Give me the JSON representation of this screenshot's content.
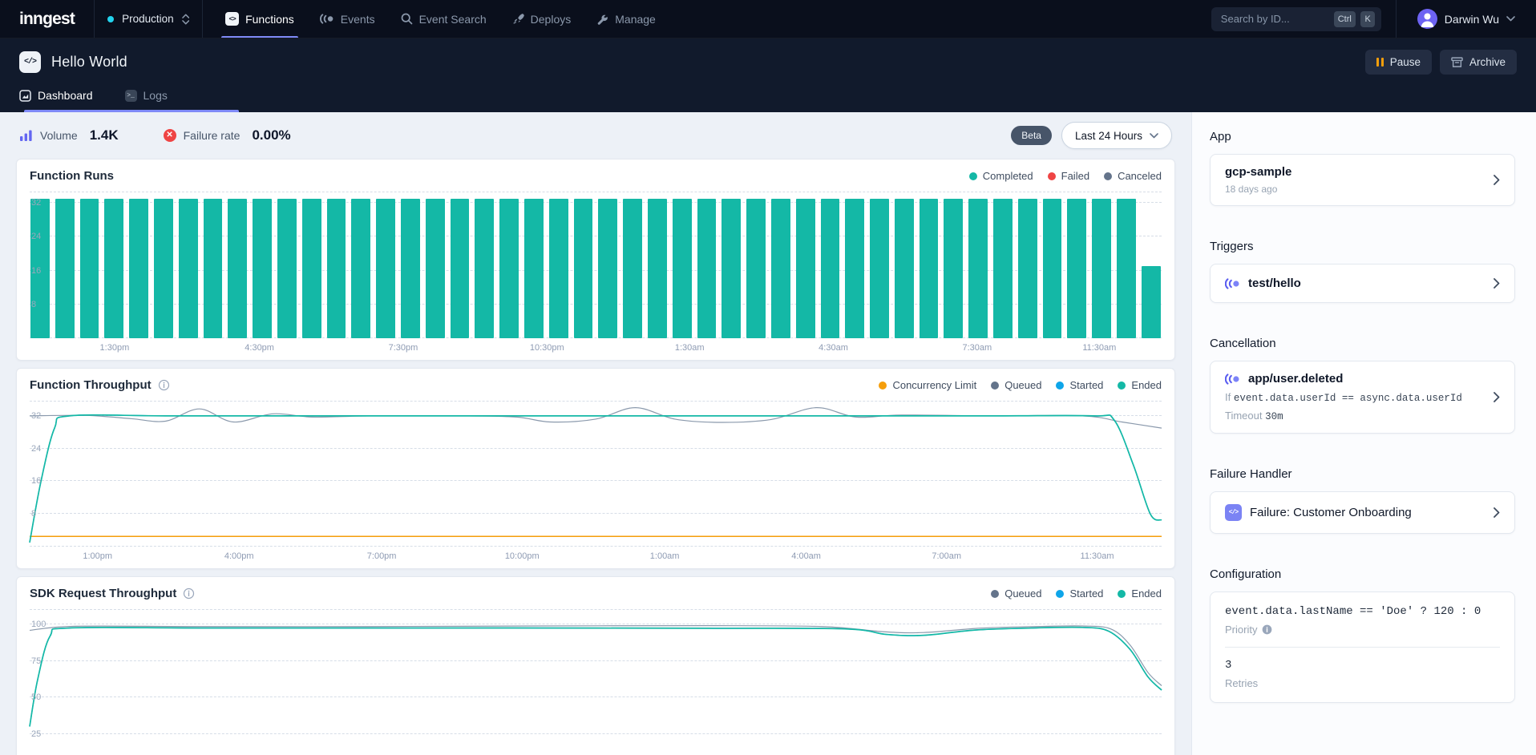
{
  "topnav": {
    "logo": "inngest",
    "env": "Production",
    "tabs": [
      {
        "label": "Functions",
        "active": true
      },
      {
        "label": "Events"
      },
      {
        "label": "Event Search"
      },
      {
        "label": "Deploys"
      },
      {
        "label": "Manage"
      }
    ],
    "search_placeholder": "Search by ID...",
    "kbd": [
      "Ctrl",
      "K"
    ],
    "user": "Darwin Wu"
  },
  "header": {
    "title": "Hello World",
    "tabs": [
      {
        "label": "Dashboard",
        "active": true
      },
      {
        "label": "Logs"
      }
    ],
    "pause_label": "Pause",
    "archive_label": "Archive"
  },
  "stats": {
    "volume_label": "Volume",
    "volume_value": "1.4K",
    "failure_label": "Failure rate",
    "failure_value": "0.00%",
    "beta_label": "Beta",
    "range_label": "Last 24 Hours"
  },
  "colors": {
    "accent_indigo": "#7f8af7",
    "completed_teal": "#14b8a6",
    "failed_red": "#ef4444",
    "canceled_slate": "#64748b",
    "started_blue": "#0ea5e9",
    "concurrency_amber": "#f59e0b"
  },
  "chart_data": [
    {
      "id": "function-runs",
      "type": "bar",
      "title": "Function Runs",
      "legend": [
        {
          "label": "Completed",
          "color": "#14b8a6"
        },
        {
          "label": "Failed",
          "color": "#ef4444"
        },
        {
          "label": "Canceled",
          "color": "#64748b"
        }
      ],
      "series_name": "Completed",
      "bar_color": "#14b8a6",
      "ylim": [
        0,
        34.5
      ],
      "yticks": [
        8,
        16,
        24,
        32
      ],
      "values": [
        33,
        33,
        33,
        33,
        33,
        33,
        33,
        33,
        33,
        33,
        33,
        33,
        33,
        33,
        33,
        33,
        33,
        33,
        33,
        33,
        33,
        33,
        33,
        33,
        33,
        33,
        33,
        33,
        33,
        33,
        33,
        33,
        33,
        33,
        33,
        33,
        33,
        33,
        33,
        33,
        33,
        33,
        33,
        33,
        33,
        17
      ],
      "xtick_labels": [
        "1:30pm",
        "4:30pm",
        "7:30pm",
        "10:30pm",
        "1:30am",
        "4:30am",
        "7:30am",
        "11:30am"
      ],
      "xtick_pos": [
        0.075,
        0.203,
        0.33,
        0.457,
        0.583,
        0.71,
        0.837,
        0.945
      ]
    },
    {
      "id": "function-throughput",
      "type": "line",
      "title": "Function Throughput",
      "legend": [
        {
          "label": "Concurrency Limit",
          "color": "#f59e0b"
        },
        {
          "label": "Queued",
          "color": "#64748b"
        },
        {
          "label": "Started",
          "color": "#0ea5e9"
        },
        {
          "label": "Ended",
          "color": "#14b8a6"
        }
      ],
      "ylim": [
        0,
        35.5
      ],
      "yticks": [
        8,
        16,
        24,
        32
      ],
      "series": [
        {
          "name": "Concurrency Limit",
          "color": "#f59e0b",
          "width": 1.4,
          "points": [
            [
              0,
              2.5
            ],
            [
              1,
              2.5
            ]
          ]
        },
        {
          "name": "Queued",
          "color": "#8a99ac",
          "width": 1.2,
          "points": [
            [
              0,
              32
            ],
            [
              0.05,
              32.1
            ],
            [
              0.09,
              31.3
            ],
            [
              0.12,
              30.7
            ],
            [
              0.15,
              33.7
            ],
            [
              0.18,
              30.5
            ],
            [
              0.215,
              32.5
            ],
            [
              0.25,
              31.7
            ],
            [
              0.3,
              32
            ],
            [
              0.38,
              32
            ],
            [
              0.43,
              31.7
            ],
            [
              0.46,
              30.5
            ],
            [
              0.5,
              31.2
            ],
            [
              0.535,
              34
            ],
            [
              0.57,
              31.2
            ],
            [
              0.61,
              30.4
            ],
            [
              0.655,
              31.1
            ],
            [
              0.695,
              34
            ],
            [
              0.73,
              31.7
            ],
            [
              0.77,
              32.2
            ],
            [
              0.85,
              32
            ],
            [
              0.93,
              32
            ],
            [
              0.965,
              30.5
            ],
            [
              1,
              29
            ]
          ]
        },
        {
          "name": "Started",
          "color": "#0ea5e9",
          "width": 1.3,
          "points": [
            [
              0,
              1
            ],
            [
              0.01,
              16
            ],
            [
              0.022,
              29
            ],
            [
              0.035,
              32
            ],
            [
              0.12,
              32
            ],
            [
              0.25,
              32
            ],
            [
              0.4,
              32
            ],
            [
              0.55,
              32
            ],
            [
              0.7,
              32
            ],
            [
              0.85,
              32
            ],
            [
              0.94,
              32
            ],
            [
              0.958,
              31
            ],
            [
              0.975,
              20
            ],
            [
              0.99,
              8
            ],
            [
              1,
              6.5
            ]
          ]
        },
        {
          "name": "Ended",
          "color": "#14b8a6",
          "width": 1.7,
          "points": [
            [
              0,
              1
            ],
            [
              0.01,
              16
            ],
            [
              0.022,
              29
            ],
            [
              0.035,
              32
            ],
            [
              0.12,
              32
            ],
            [
              0.25,
              32
            ],
            [
              0.4,
              32
            ],
            [
              0.55,
              32
            ],
            [
              0.7,
              32
            ],
            [
              0.85,
              32
            ],
            [
              0.94,
              32
            ],
            [
              0.958,
              31
            ],
            [
              0.975,
              20
            ],
            [
              0.99,
              8
            ],
            [
              1,
              6.5
            ]
          ]
        }
      ],
      "xtick_labels": [
        "1:00pm",
        "4:00pm",
        "7:00pm",
        "10:00pm",
        "1:00am",
        "4:00am",
        "7:00am",
        "11:30am"
      ],
      "xtick_pos": [
        0.06,
        0.185,
        0.311,
        0.435,
        0.561,
        0.686,
        0.81,
        0.943
      ]
    },
    {
      "id": "sdk-request-throughput",
      "type": "line",
      "title": "SDK Request Throughput",
      "legend": [
        {
          "label": "Queued",
          "color": "#64748b"
        },
        {
          "label": "Started",
          "color": "#0ea5e9"
        },
        {
          "label": "Ended",
          "color": "#14b8a6"
        }
      ],
      "ylim": [
        0,
        110
      ],
      "yticks": [
        25,
        50,
        75,
        100
      ],
      "series": [
        {
          "name": "Queued",
          "color": "#8a99ac",
          "width": 1.2,
          "points": [
            [
              0,
              96
            ],
            [
              0.04,
              98.8
            ],
            [
              0.15,
              98.6
            ],
            [
              0.3,
              98.6
            ],
            [
              0.45,
              99
            ],
            [
              0.6,
              99.2
            ],
            [
              0.7,
              98.6
            ],
            [
              0.755,
              95
            ],
            [
              0.79,
              94.5
            ],
            [
              0.84,
              97.5
            ],
            [
              0.89,
              98.6
            ],
            [
              0.93,
              99
            ],
            [
              0.955,
              97
            ],
            [
              0.972,
              86
            ],
            [
              0.988,
              67
            ],
            [
              1,
              58
            ]
          ]
        },
        {
          "name": "Started",
          "color": "#0ea5e9",
          "width": 1.3,
          "points": [
            [
              0,
              30
            ],
            [
              0.007,
              62
            ],
            [
              0.018,
              92
            ],
            [
              0.035,
              97.6
            ],
            [
              0.15,
              97.6
            ],
            [
              0.3,
              97.6
            ],
            [
              0.45,
              97.6
            ],
            [
              0.6,
              97.4
            ],
            [
              0.72,
              97
            ],
            [
              0.757,
              93.2
            ],
            [
              0.79,
              92.6
            ],
            [
              0.835,
              96.2
            ],
            [
              0.885,
              97.6
            ],
            [
              0.93,
              98
            ],
            [
              0.953,
              95.5
            ],
            [
              0.972,
              83
            ],
            [
              0.988,
              64
            ],
            [
              1,
              55
            ]
          ]
        },
        {
          "name": "Ended",
          "color": "#14b8a6",
          "width": 1.7,
          "points": [
            [
              0,
              30
            ],
            [
              0.007,
              62
            ],
            [
              0.018,
              92
            ],
            [
              0.035,
              97.6
            ],
            [
              0.15,
              97.6
            ],
            [
              0.3,
              97.6
            ],
            [
              0.45,
              97.6
            ],
            [
              0.6,
              97.4
            ],
            [
              0.72,
              97
            ],
            [
              0.757,
              93.2
            ],
            [
              0.79,
              92.6
            ],
            [
              0.835,
              96.2
            ],
            [
              0.885,
              97.6
            ],
            [
              0.93,
              98
            ],
            [
              0.953,
              95.5
            ],
            [
              0.972,
              83
            ],
            [
              0.988,
              64
            ],
            [
              1,
              55
            ]
          ]
        }
      ],
      "xtick_labels": [
        "1:00pm",
        "4:00pm",
        "7:00pm",
        "10:00pm",
        "1:00am",
        "4:00am",
        "7:00am",
        "11:30am"
      ],
      "xtick_pos": [
        0.06,
        0.185,
        0.311,
        0.435,
        0.561,
        0.686,
        0.81,
        0.943
      ]
    }
  ],
  "sidebar": {
    "app": {
      "heading": "App",
      "name": "gcp-sample",
      "meta": "18 days ago"
    },
    "triggers": {
      "heading": "Triggers",
      "event": "test/hello"
    },
    "cancellation": {
      "heading": "Cancellation",
      "event": "app/user.deleted",
      "condition_prefix": "If",
      "condition": "event.data.userId == async.data.userId",
      "timeout_label": "Timeout",
      "timeout_value": "30m"
    },
    "failure_handler": {
      "heading": "Failure Handler",
      "name": "Failure: Customer Onboarding"
    },
    "configuration": {
      "heading": "Configuration",
      "priority_expression": "event.data.lastName == 'Doe' ? 120 : 0",
      "priority_label": "Priority",
      "retries_value": "3",
      "retries_label": "Retries"
    }
  }
}
